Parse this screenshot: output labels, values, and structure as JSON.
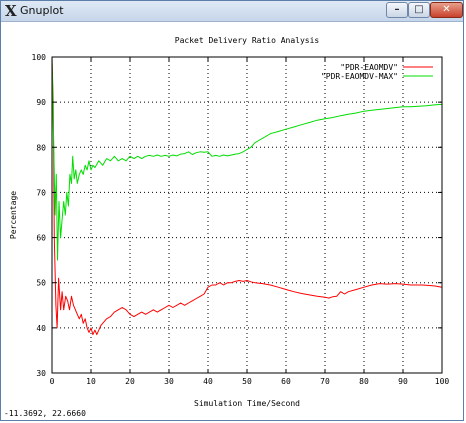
{
  "window": {
    "title": "Gnuplot",
    "icon": "x11-icon",
    "icon_glyph": "X",
    "minimize_glyph": "–",
    "maximize_glyph": "□",
    "close_glyph": "✕"
  },
  "readout": "-11.3692,  22.6660",
  "chart_data": {
    "type": "line",
    "title": "Packet Delivery Ratio Analysis",
    "xlabel": "Simulation Time/Second",
    "ylabel": "Percentage",
    "xlim": [
      0,
      100
    ],
    "ylim": [
      30,
      100
    ],
    "xticks": [
      0,
      10,
      20,
      30,
      40,
      50,
      60,
      70,
      80,
      90,
      100
    ],
    "yticks": [
      30,
      40,
      50,
      60,
      70,
      80,
      90,
      100
    ],
    "grid": true,
    "legend_position": "top-right",
    "series": [
      {
        "name": "\"PDR-EAOMDV\"",
        "color": "#ff0000",
        "points": [
          [
            0,
            100
          ],
          [
            0.3,
            90
          ],
          [
            0.6,
            60
          ],
          [
            1,
            45
          ],
          [
            1.3,
            40
          ],
          [
            1.7,
            51
          ],
          [
            2.2,
            44
          ],
          [
            2.6,
            48
          ],
          [
            3,
            44
          ],
          [
            3.5,
            47
          ],
          [
            4,
            46
          ],
          [
            4.5,
            44
          ],
          [
            5,
            47
          ],
          [
            5.5,
            45
          ],
          [
            6,
            44
          ],
          [
            6.5,
            43
          ],
          [
            7,
            42
          ],
          [
            7.5,
            43
          ],
          [
            8,
            41
          ],
          [
            8.5,
            42
          ],
          [
            9,
            40
          ],
          [
            9.5,
            39
          ],
          [
            10,
            40
          ],
          [
            10.5,
            38.5
          ],
          [
            11,
            39.5
          ],
          [
            11.5,
            38.5
          ],
          [
            12,
            39.5
          ],
          [
            12.5,
            40.5
          ],
          [
            13,
            41
          ],
          [
            14,
            42
          ],
          [
            15,
            42.5
          ],
          [
            16,
            43.5
          ],
          [
            17,
            44
          ],
          [
            18,
            44.5
          ],
          [
            19,
            44
          ],
          [
            20,
            43
          ],
          [
            21,
            42.5
          ],
          [
            22,
            43
          ],
          [
            23,
            43.5
          ],
          [
            24,
            43
          ],
          [
            25,
            43.5
          ],
          [
            26,
            44
          ],
          [
            27,
            43.5
          ],
          [
            28,
            44
          ],
          [
            29,
            44.5
          ],
          [
            30,
            45
          ],
          [
            31,
            44.5
          ],
          [
            32,
            45
          ],
          [
            33,
            45.5
          ],
          [
            34,
            45
          ],
          [
            35,
            45.5
          ],
          [
            36,
            46
          ],
          [
            37,
            46.5
          ],
          [
            38,
            47
          ],
          [
            39,
            47.5
          ],
          [
            40,
            49
          ],
          [
            41,
            49.5
          ],
          [
            42,
            49.5
          ],
          [
            43,
            50
          ],
          [
            44,
            49.5
          ],
          [
            45,
            50
          ],
          [
            46,
            50
          ],
          [
            47,
            50.3
          ],
          [
            48,
            50.5
          ],
          [
            49,
            50.3
          ],
          [
            50,
            50.5
          ],
          [
            51,
            50.2
          ],
          [
            52,
            50
          ],
          [
            54,
            49.8
          ],
          [
            56,
            49.5
          ],
          [
            58,
            49
          ],
          [
            60,
            48.5
          ],
          [
            62,
            48
          ],
          [
            64,
            47.6
          ],
          [
            66,
            47.3
          ],
          [
            68,
            47
          ],
          [
            70,
            46.8
          ],
          [
            71,
            46.6
          ],
          [
            72,
            46.9
          ],
          [
            73,
            47
          ],
          [
            74,
            48
          ],
          [
            75,
            47.5
          ],
          [
            76,
            48
          ],
          [
            78,
            48.5
          ],
          [
            80,
            49
          ],
          [
            82,
            49.5
          ],
          [
            84,
            49.8
          ],
          [
            86,
            49.7
          ],
          [
            88,
            49.8
          ],
          [
            90,
            49.7
          ],
          [
            92,
            49.5
          ],
          [
            95,
            49.5
          ],
          [
            98,
            49.3
          ],
          [
            100,
            49
          ]
        ]
      },
      {
        "name": "\"PDR-EAOMDV-MAX\"",
        "color": "#00dd00",
        "points": [
          [
            0,
            100
          ],
          [
            0.4,
            82
          ],
          [
            0.8,
            65
          ],
          [
            1.1,
            74
          ],
          [
            1.4,
            55
          ],
          [
            1.8,
            68
          ],
          [
            2.2,
            60
          ],
          [
            2.6,
            64
          ],
          [
            3,
            68
          ],
          [
            3.4,
            65
          ],
          [
            3.8,
            70
          ],
          [
            4.2,
            67
          ],
          [
            4.6,
            74
          ],
          [
            5,
            72
          ],
          [
            5.3,
            78
          ],
          [
            5.7,
            73
          ],
          [
            6.1,
            75
          ],
          [
            6.5,
            72
          ],
          [
            7,
            74
          ],
          [
            7.5,
            75
          ],
          [
            8,
            74
          ],
          [
            8.5,
            76
          ],
          [
            9,
            75
          ],
          [
            9.5,
            77
          ],
          [
            10,
            75
          ],
          [
            10.5,
            76
          ],
          [
            11,
            75.5
          ],
          [
            12,
            77
          ],
          [
            13,
            76
          ],
          [
            14,
            77.5
          ],
          [
            15,
            77
          ],
          [
            16,
            78
          ],
          [
            17,
            77
          ],
          [
            18,
            77.5
          ],
          [
            19,
            77
          ],
          [
            20,
            78
          ],
          [
            21,
            77.5
          ],
          [
            22,
            78
          ],
          [
            23,
            77.5
          ],
          [
            24,
            78
          ],
          [
            25,
            78.2
          ],
          [
            26,
            78
          ],
          [
            27,
            78.3
          ],
          [
            28,
            78
          ],
          [
            29,
            78.2
          ],
          [
            30,
            78
          ],
          [
            31,
            78.3
          ],
          [
            32,
            78.1
          ],
          [
            33,
            78.5
          ],
          [
            34,
            78.6
          ],
          [
            35,
            79
          ],
          [
            36,
            78.4
          ],
          [
            37,
            78.8
          ],
          [
            38,
            79
          ],
          [
            39,
            78.9
          ],
          [
            40,
            79
          ],
          [
            41,
            78
          ],
          [
            42,
            78.2
          ],
          [
            43,
            78
          ],
          [
            44,
            78.3
          ],
          [
            45,
            78.1
          ],
          [
            46,
            78.3
          ],
          [
            47,
            78.5
          ],
          [
            48,
            78.6
          ],
          [
            49,
            79
          ],
          [
            50,
            79.5
          ],
          [
            51,
            80
          ],
          [
            52,
            81
          ],
          [
            53,
            81.5
          ],
          [
            54,
            82
          ],
          [
            55,
            82.5
          ],
          [
            56,
            83
          ],
          [
            58,
            83.5
          ],
          [
            60,
            84
          ],
          [
            62,
            84.5
          ],
          [
            64,
            85
          ],
          [
            66,
            85.5
          ],
          [
            68,
            86
          ],
          [
            70,
            86.3
          ],
          [
            72,
            86.6
          ],
          [
            74,
            87
          ],
          [
            76,
            87.3
          ],
          [
            78,
            87.6
          ],
          [
            80,
            88
          ],
          [
            82,
            88.2
          ],
          [
            84,
            88.4
          ],
          [
            86,
            88.6
          ],
          [
            88,
            88.8
          ],
          [
            90,
            89
          ],
          [
            92,
            89
          ],
          [
            94,
            89.1
          ],
          [
            96,
            89.2
          ],
          [
            98,
            89.4
          ],
          [
            100,
            89.5
          ]
        ]
      }
    ]
  }
}
